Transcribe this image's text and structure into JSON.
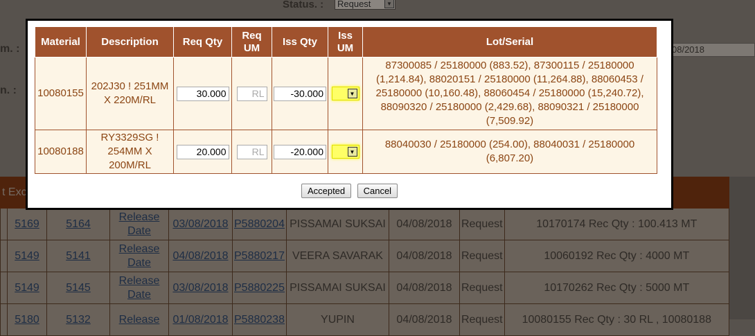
{
  "background": {
    "status_label": "Status. :",
    "status_value": "Request",
    "label_1": "m. :",
    "label_2": "n. :",
    "right_date": "08/2018",
    "header_partial": "t Exc",
    "rows": [
      [
        "5169",
        "5164",
        "Release Date",
        "03/08/2018",
        "P5880204",
        "PISSAMAI SUKSAI",
        "04/08/2018",
        "Request",
        "10170174 Rec Qty : 100.413 MT"
      ],
      [
        "5149",
        "5141",
        "Release Date",
        "04/08/2018",
        "P5880217",
        "VEERA SAVARAK",
        "04/08/2018",
        "Request",
        "10060192 Rec Qty : 4000 MT"
      ],
      [
        "5149",
        "5145",
        "Release Date",
        "03/08/2018",
        "P5880225",
        "PISSAMAI SUKSAI",
        "04/08/2018",
        "Request",
        "10170262 Rec Qty : 5000 MT"
      ],
      [
        "5180",
        "5132",
        "Release",
        "01/08/2018",
        "P5880238",
        "YUPIN",
        "04/08/2018",
        "Request",
        "10080155 Rec Qty : 30 RL , 10080188"
      ]
    ]
  },
  "modal": {
    "headers": [
      "Material",
      "Description",
      "Req Qty",
      "Req UM",
      "Iss Qty",
      "Iss UM",
      "Lot/Serial"
    ],
    "rows": [
      {
        "material": "10080155",
        "description": "202J30 ! 251MM X 220M/RL",
        "req_qty": "30.000",
        "req_um": "RL",
        "iss_qty": "-30.000",
        "iss_um": "",
        "lot": "87300085 / 25180000 (883.52), 87300115 / 25180000 (1,214.84), 88020151 / 25180000 (11,264.88), 88060453 / 25180000 (10,160.48), 88060454 / 25180000 (15,240.72), 88090320 / 25180000 (2,429.68), 88090321 / 25180000 (7,509.92)"
      },
      {
        "material": "10080188",
        "description": "RY3329SG ! 254MM X 200M/RL",
        "req_qty": "20.000",
        "req_um": "RL",
        "iss_qty": "-20.000",
        "iss_um": "",
        "lot": "88040030 / 25180000 (254.00), 88040031 / 25180000 (6,807.20)"
      }
    ],
    "accept_label": "Accepted",
    "cancel_label": "Cancel"
  },
  "colors": {
    "header": "#a0522d",
    "row": "#fdf5e6",
    "text": "#8b4513",
    "highlight": "#ffff66"
  }
}
